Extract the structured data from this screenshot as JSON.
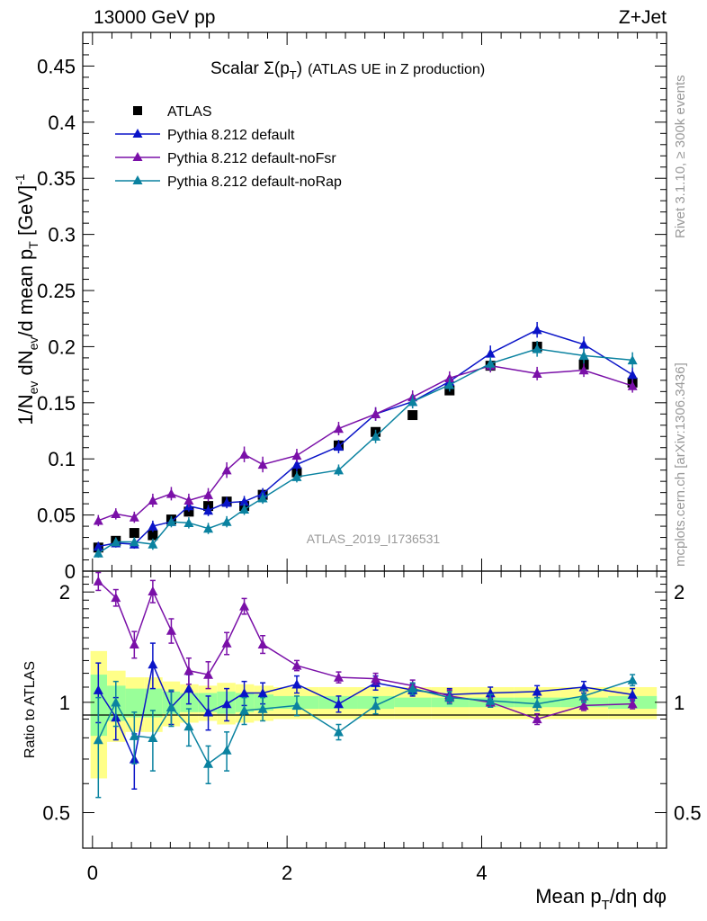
{
  "header": {
    "energy_label": "13000 GeV pp",
    "process_label": "Z+Jet"
  },
  "side_labels": {
    "rivet": "Rivet 3.1.10, ≥ 300k events",
    "mcplots": "mcplots.cern.ch [arXiv:1306.3436]"
  },
  "analysis_tag": "ATLAS_2019_I1736531",
  "colors": {
    "atlas": "#000000",
    "default": "#0a14c8",
    "noFsr": "#7a10a8",
    "noRap": "#0a82a0",
    "band_inner": "#99ff99",
    "band_outer": "#ffff88"
  },
  "chart_data": [
    {
      "type": "scatter",
      "panel": "main",
      "title_main": "Scalar Σ(p",
      "title_sub": "T",
      "title_close": ")",
      "title_rest": "(ATLAS UE in Z production)",
      "ylabel_pre": "1/N",
      "ylabel_sub1": "ev",
      "ylabel_mid": " dN",
      "ylabel_sub2": "ev",
      "ylabel_post": "/d mean p",
      "ylabel_sub3": "T",
      "ylabel_unit": " [GeV]",
      "ylabel_sup": "-1",
      "xlim": [
        -0.1,
        5.9
      ],
      "ylim": [
        0,
        0.48
      ],
      "yticks": [
        0,
        0.05,
        0.1,
        0.15,
        0.2,
        0.25,
        0.3,
        0.35,
        0.4,
        0.45
      ],
      "ytick_labels": [
        "0",
        "0.05",
        "0.1",
        "0.15",
        "0.2",
        "0.25",
        "0.3",
        "0.35",
        "0.4",
        "0.45"
      ],
      "legend_position": "top-left",
      "x": [
        0.06,
        0.24,
        0.43,
        0.62,
        0.81,
        0.99,
        1.19,
        1.38,
        1.56,
        1.75,
        2.1,
        2.53,
        2.91,
        3.29,
        3.67,
        4.09,
        4.57,
        5.05,
        5.55
      ],
      "series": [
        {
          "name": "ATLAS",
          "marker": "square",
          "color_key": "atlas",
          "values": [
            0.021,
            0.027,
            0.034,
            0.032,
            0.046,
            0.053,
            0.058,
            0.062,
            0.058,
            0.068,
            0.088,
            0.112,
            0.124,
            0.139,
            0.161,
            0.183,
            0.2,
            0.184,
            0.168
          ],
          "errors": [
            0.004,
            0.003,
            0.003,
            0.003,
            0.003,
            0.003,
            0.003,
            0.004,
            0.003,
            0.003,
            0.003,
            0.004,
            0.004,
            0.003,
            0.004,
            0.004,
            0.005,
            0.005,
            0.006
          ]
        },
        {
          "name": "Pythia 8.212 default",
          "marker": "triangle",
          "color_key": "default",
          "values": [
            0.022,
            0.025,
            0.024,
            0.04,
            0.044,
            0.058,
            0.054,
            0.061,
            0.062,
            0.069,
            0.095,
            0.111,
            0.14,
            0.151,
            0.169,
            0.194,
            0.215,
            0.202,
            0.175
          ],
          "errors": [
            0.004,
            0.004,
            0.004,
            0.005,
            0.004,
            0.005,
            0.005,
            0.005,
            0.005,
            0.005,
            0.006,
            0.006,
            0.006,
            0.006,
            0.006,
            0.007,
            0.007,
            0.007,
            0.007
          ]
        },
        {
          "name": "Pythia 8.212 default-noFsr",
          "marker": "triangle",
          "color_key": "noFsr",
          "values": [
            0.045,
            0.051,
            0.048,
            0.063,
            0.069,
            0.063,
            0.068,
            0.09,
            0.104,
            0.095,
            0.103,
            0.127,
            0.14,
            0.155,
            0.172,
            0.183,
            0.176,
            0.179,
            0.165
          ],
          "errors": [
            0.005,
            0.005,
            0.005,
            0.006,
            0.006,
            0.006,
            0.006,
            0.007,
            0.007,
            0.007,
            0.006,
            0.006,
            0.006,
            0.006,
            0.006,
            0.006,
            0.006,
            0.006,
            0.006
          ]
        },
        {
          "name": "Pythia 8.212 default-noRap",
          "marker": "triangle",
          "color_key": "noRap",
          "values": [
            0.016,
            0.026,
            0.026,
            0.024,
            0.044,
            0.043,
            0.038,
            0.044,
            0.055,
            0.065,
            0.084,
            0.09,
            0.12,
            0.151,
            0.166,
            0.185,
            0.198,
            0.192,
            0.188
          ],
          "errors": [
            0.004,
            0.004,
            0.004,
            0.005,
            0.005,
            0.005,
            0.005,
            0.005,
            0.005,
            0.005,
            0.005,
            0.005,
            0.006,
            0.006,
            0.006,
            0.006,
            0.007,
            0.007,
            0.007
          ]
        }
      ]
    },
    {
      "type": "scatter",
      "panel": "ratio",
      "ylabel": "Ratio to ATLAS",
      "xlabel_pre": "Mean p",
      "xlabel_sub": "T",
      "xlabel_post": "/dη dφ",
      "xlim": [
        -0.1,
        5.9
      ],
      "ylim": [
        0.4,
        2.28
      ],
      "scale": "log",
      "xticks": [
        0,
        2,
        4
      ],
      "xtick_labels": [
        "0",
        "2",
        "4"
      ],
      "yticks": [
        0.5,
        1,
        2
      ],
      "ytick_labels": [
        "0.5",
        "1",
        "2"
      ],
      "x": [
        0.06,
        0.24,
        0.43,
        0.62,
        0.81,
        0.99,
        1.19,
        1.38,
        1.56,
        1.75,
        2.1,
        2.53,
        2.91,
        3.29,
        3.67,
        4.09,
        4.57,
        5.05,
        5.55
      ],
      "bin_edges": [
        -0.02,
        0.15,
        0.34,
        0.53,
        0.72,
        0.9,
        1.09,
        1.28,
        1.47,
        1.66,
        1.86,
        2.33,
        2.72,
        3.1,
        3.48,
        3.87,
        4.33,
        4.81,
        5.3,
        5.8
      ],
      "band_inner": [
        0.19,
        0.11,
        0.09,
        0.09,
        0.07,
        0.06,
        0.06,
        0.07,
        0.06,
        0.05,
        0.04,
        0.04,
        0.04,
        0.03,
        0.03,
        0.03,
        0.03,
        0.03,
        0.04
      ],
      "band_outer": [
        0.38,
        0.22,
        0.17,
        0.17,
        0.14,
        0.12,
        0.11,
        0.13,
        0.12,
        0.11,
        0.1,
        0.1,
        0.1,
        0.1,
        0.1,
        0.1,
        0.1,
        0.1,
        0.1
      ],
      "series": [
        {
          "name": "Pythia 8.212 default",
          "color_key": "default",
          "values": [
            1.08,
            0.91,
            0.7,
            1.27,
            0.97,
            1.09,
            0.94,
            0.99,
            1.06,
            1.06,
            1.12,
            0.99,
            1.13,
            1.08,
            1.05,
            1.06,
            1.07,
            1.1,
            1.05
          ],
          "errors": [
            0.2,
            0.12,
            0.12,
            0.18,
            0.1,
            0.1,
            0.1,
            0.1,
            0.08,
            0.07,
            0.06,
            0.05,
            0.05,
            0.04,
            0.04,
            0.04,
            0.04,
            0.04,
            0.04
          ]
        },
        {
          "name": "Pythia 8.212 default-noFsr",
          "color_key": "noFsr",
          "values": [
            2.14,
            1.93,
            1.44,
            2.01,
            1.57,
            1.22,
            1.19,
            1.45,
            1.83,
            1.44,
            1.26,
            1.17,
            1.16,
            1.11,
            1.04,
            1.0,
            0.9,
            0.98,
            0.99
          ],
          "errors": [
            0.12,
            0.1,
            0.12,
            0.14,
            0.12,
            0.1,
            0.1,
            0.1,
            0.09,
            0.08,
            0.04,
            0.04,
            0.04,
            0.04,
            0.04,
            0.03,
            0.03,
            0.03,
            0.03
          ]
        },
        {
          "name": "Pythia 8.212 default-noRap",
          "color_key": "noRap",
          "values": [
            0.79,
            1.0,
            0.81,
            0.8,
            0.97,
            0.86,
            0.68,
            0.74,
            0.95,
            0.96,
            0.98,
            0.83,
            0.98,
            1.09,
            1.03,
            1.01,
            0.99,
            1.04,
            1.15
          ],
          "errors": [
            0.24,
            0.14,
            0.13,
            0.15,
            0.11,
            0.1,
            0.08,
            0.09,
            0.08,
            0.07,
            0.06,
            0.04,
            0.05,
            0.04,
            0.04,
            0.04,
            0.04,
            0.04,
            0.04
          ]
        }
      ]
    }
  ]
}
